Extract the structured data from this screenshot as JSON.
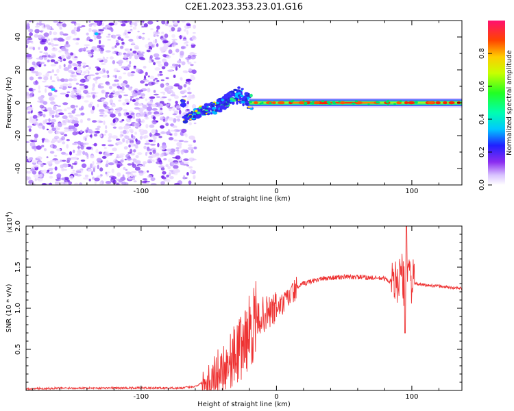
{
  "figure": {
    "title": "C2E1.2023.353.23.01.G16",
    "accent_color": "#ee2222"
  },
  "chart_data": [
    {
      "type": "heatmap",
      "xlabel": "Height of straight line (km)",
      "ylabel": "Frequency (Hz)",
      "xlim": [
        -185,
        137
      ],
      "ylim": [
        -50,
        50
      ],
      "x_ticks": [
        -100,
        0,
        100
      ],
      "y_ticks": [
        -40,
        -20,
        0,
        20,
        40
      ],
      "noise_region_x": [
        -185,
        -60
      ],
      "signal_track": [
        {
          "x": -68,
          "y": -10
        },
        {
          "x": -55,
          "y": -5
        },
        {
          "x": -45,
          "y": -3
        },
        {
          "x": -35,
          "y": 2
        },
        {
          "x": -27,
          "y": 5
        },
        {
          "x": -20,
          "y": 1
        },
        {
          "x": 0,
          "y": 0
        },
        {
          "x": 50,
          "y": 0
        },
        {
          "x": 100,
          "y": 0
        },
        {
          "x": 137,
          "y": 0
        }
      ],
      "colorbar": {
        "label": "Normalized spectral amplitude",
        "range": [
          0,
          1
        ],
        "ticks": [
          0.0,
          0.2,
          0.4,
          0.6,
          0.8
        ],
        "tick_labels": [
          "0.0",
          "0.2",
          "0.4",
          "0.6",
          "0.8"
        ]
      }
    },
    {
      "type": "line",
      "xlabel": "Height of straight line (km)",
      "ylabel": "SNR (10 * v/v)",
      "y_multiplier": "(x10",
      "y_multiplier_exp": "4",
      "y_multiplier_close": ")",
      "xlim": [
        -185,
        137
      ],
      "ylim": [
        0,
        2.0
      ],
      "x_ticks": [
        -100,
        0,
        100
      ],
      "y_ticks": [
        0.5,
        1.0,
        1.5,
        2.0
      ],
      "y_tick_labels": [
        "0.5",
        "1.0",
        "1.5",
        "2.0"
      ],
      "series": [
        {
          "color": "#ee3333",
          "x": [
            -185,
            -150,
            -120,
            -90,
            -70,
            -60,
            -52,
            -45,
            -40,
            -35,
            -30,
            -25,
            -20,
            -15,
            -10,
            -5,
            0,
            5,
            10,
            15,
            20,
            30,
            40,
            50,
            60,
            70,
            80,
            88,
            92,
            95,
            97,
            99,
            102,
            110,
            120,
            130,
            137
          ],
          "y": [
            0.02,
            0.03,
            0.03,
            0.03,
            0.03,
            0.05,
            0.12,
            0.2,
            0.28,
            0.35,
            0.45,
            0.55,
            0.72,
            0.85,
            0.92,
            0.95,
            1.0,
            1.05,
            1.15,
            1.25,
            1.3,
            1.35,
            1.37,
            1.38,
            1.38,
            1.37,
            1.36,
            1.3,
            1.45,
            1.2,
            1.6,
            1.35,
            1.3,
            1.28,
            1.27,
            1.25,
            1.24
          ]
        }
      ]
    }
  ],
  "colors": {
    "axis": "#000000",
    "grid": "none",
    "noise_purple": "#7a2cf0",
    "signal_core": "#ff2200",
    "signal_mid": "#00ee55",
    "signal_outer": "#4466ff"
  }
}
